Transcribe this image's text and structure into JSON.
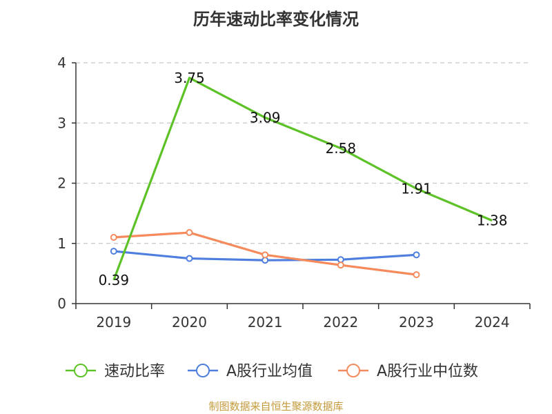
{
  "chart_data": {
    "type": "line",
    "title": "历年速动比率变化情况",
    "categories": [
      "2019",
      "2020",
      "2021",
      "2022",
      "2023",
      "2024"
    ],
    "ylim": [
      0,
      4
    ],
    "yticks": [
      0,
      1,
      2,
      3,
      4
    ],
    "grid": true,
    "legend_position": "bottom",
    "series": [
      {
        "name": "速动比率",
        "color": "#5dc227",
        "values": [
          0.39,
          3.75,
          3.09,
          2.58,
          1.91,
          1.38
        ],
        "labels": [
          "0.39",
          "3.75",
          "3.09",
          "2.58",
          "1.91",
          "1.38"
        ],
        "markers": false
      },
      {
        "name": "A股行业均值",
        "color": "#4f7fde",
        "values": [
          0.87,
          0.75,
          0.72,
          0.73,
          0.81,
          null
        ],
        "markers": true
      },
      {
        "name": "A股行业中位数",
        "color": "#f58b5c",
        "values": [
          1.1,
          1.18,
          0.81,
          0.64,
          0.48,
          null
        ],
        "markers": true
      }
    ]
  },
  "source": "制图数据来自恒生聚源数据库"
}
